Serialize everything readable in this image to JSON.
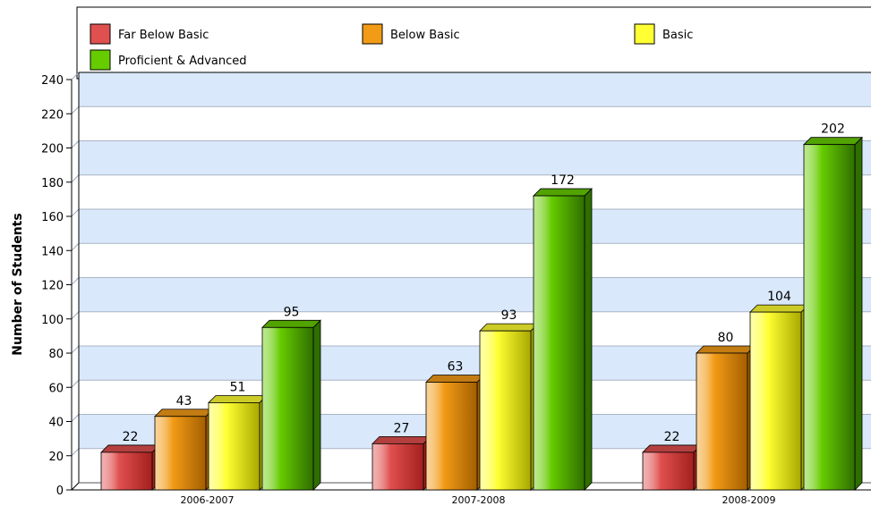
{
  "chart_data": {
    "type": "bar",
    "title": "",
    "xlabel": "",
    "ylabel": "Number of Students",
    "categories": [
      "2006-2007",
      "2007-2008",
      "2008-2009"
    ],
    "series": [
      {
        "name": "Far Below Basic",
        "values": [
          22,
          27,
          22
        ],
        "color": "#e0504f",
        "dark": "#a3201e"
      },
      {
        "name": "Below Basic",
        "values": [
          43,
          63,
          80
        ],
        "color": "#f29b16",
        "dark": "#a35f00"
      },
      {
        "name": "Basic",
        "values": [
          51,
          93,
          104
        ],
        "color": "#ffff33",
        "dark": "#a8a800"
      },
      {
        "name": "Proficient & Advanced",
        "values": [
          95,
          172,
          202
        ],
        "color": "#66cc00",
        "dark": "#2f6e00"
      }
    ],
    "ylim": [
      0,
      240
    ],
    "yticks": [
      0,
      20,
      40,
      60,
      80,
      100,
      120,
      140,
      160,
      180,
      200,
      220,
      240
    ],
    "grid": true,
    "grid_band_color": "#d9e8fb",
    "legend_position": "top",
    "bar_style": "3d"
  }
}
